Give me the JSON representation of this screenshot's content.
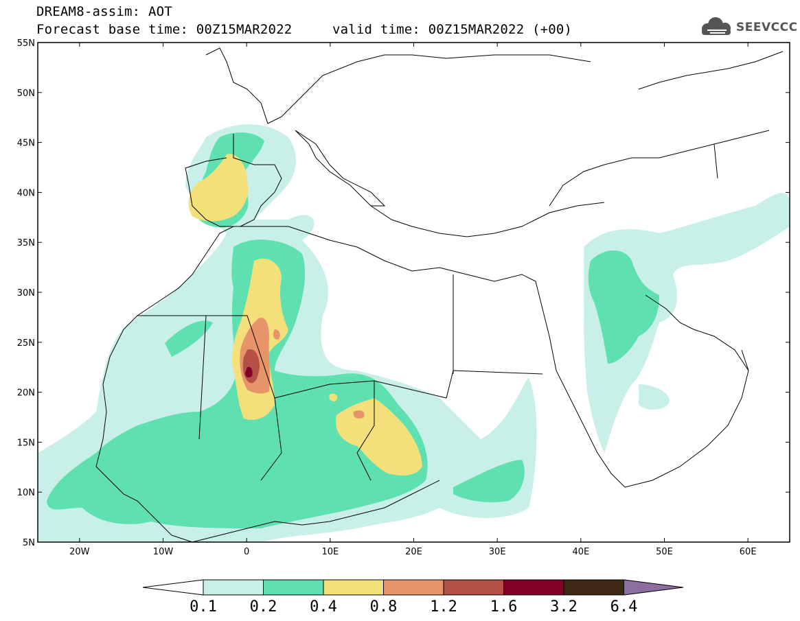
{
  "title": {
    "line1": "DREAM8-assim: AOT",
    "line2": "Forecast base time: 00Z15MAR2022",
    "line3": "valid time: 00Z15MAR2022 (+00)"
  },
  "logo": {
    "text": "SEEVCCC",
    "icon": "cloud-icon"
  },
  "axes": {
    "lat_labels": [
      "55N",
      "50N",
      "45N",
      "40N",
      "35N",
      "30N",
      "25N",
      "20N",
      "15N",
      "10N",
      "5N"
    ],
    "lon_labels": [
      "20W",
      "10W",
      "0",
      "10E",
      "20E",
      "30E",
      "40E",
      "50E",
      "60E"
    ],
    "lat_range": [
      5,
      55
    ],
    "lon_range": [
      -25,
      65
    ]
  },
  "colorbar": {
    "labels": [
      "0.1",
      "0.2",
      "0.4",
      "0.8",
      "1.2",
      "1.6",
      "3.2",
      "6.4"
    ],
    "colors": [
      "#c8f0e8",
      "#5fe0b0",
      "#f4e07a",
      "#e8946a",
      "#b45046",
      "#820028",
      "#3c2814",
      "#8c6ea0"
    ]
  }
}
